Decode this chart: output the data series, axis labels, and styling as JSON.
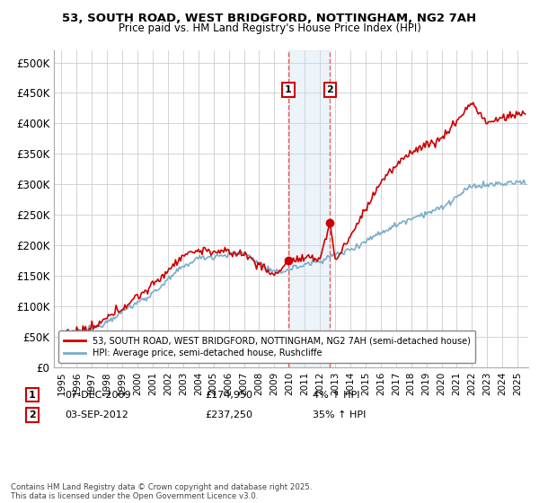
{
  "title_line1": "53, SOUTH ROAD, WEST BRIDGFORD, NOTTINGHAM, NG2 7AH",
  "title_line2": "Price paid vs. HM Land Registry's House Price Index (HPI)",
  "ylim": [
    0,
    520000
  ],
  "yticks": [
    0,
    50000,
    100000,
    150000,
    200000,
    250000,
    300000,
    350000,
    400000,
    450000,
    500000
  ],
  "ytick_labels": [
    "£0",
    "£50K",
    "£100K",
    "£150K",
    "£200K",
    "£250K",
    "£300K",
    "£350K",
    "£400K",
    "£450K",
    "£500K"
  ],
  "xlim_start": 1994.5,
  "xlim_end": 2025.7,
  "xticks": [
    1995,
    1996,
    1997,
    1998,
    1999,
    2000,
    2001,
    2002,
    2003,
    2004,
    2005,
    2006,
    2007,
    2008,
    2009,
    2010,
    2011,
    2012,
    2013,
    2014,
    2015,
    2016,
    2017,
    2018,
    2019,
    2020,
    2021,
    2022,
    2023,
    2024,
    2025
  ],
  "sale1_x": 2009.92,
  "sale1_y": 174950,
  "sale1_label": "1",
  "sale1_date": "07-DEC-2009",
  "sale1_price": "£174,950",
  "sale1_hpi": "4% ↑ HPI",
  "sale2_x": 2012.67,
  "sale2_y": 237250,
  "sale2_label": "2",
  "sale2_date": "03-SEP-2012",
  "sale2_price": "£237,250",
  "sale2_hpi": "35% ↑ HPI",
  "line_color_red": "#cc0000",
  "line_color_blue": "#7aaccc",
  "shade_color": "#cce0f0",
  "vline_color": "#e06060",
  "background_color": "#ffffff",
  "grid_color": "#cccccc",
  "legend_label_red": "53, SOUTH ROAD, WEST BRIDGFORD, NOTTINGHAM, NG2 7AH (semi-detached house)",
  "legend_label_blue": "HPI: Average price, semi-detached house, Rushcliffe",
  "footnote": "Contains HM Land Registry data © Crown copyright and database right 2025.\nThis data is licensed under the Open Government Licence v3.0."
}
